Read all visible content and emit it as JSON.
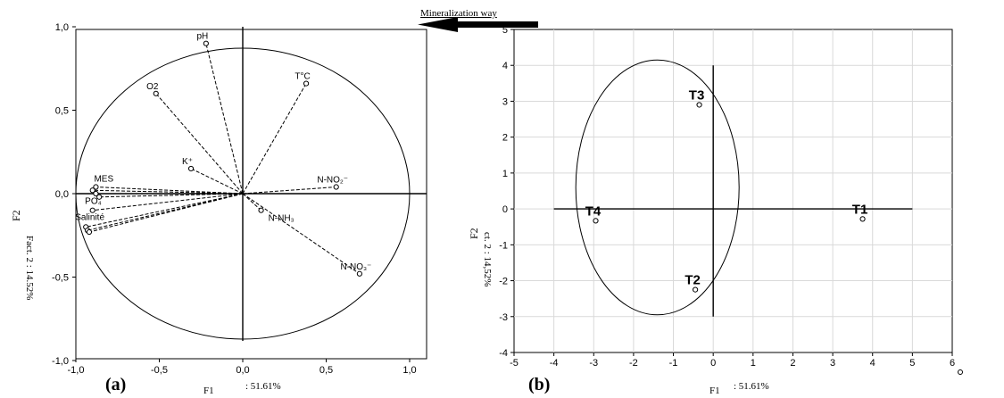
{
  "banner": {
    "text": "Mineralization way"
  },
  "chart_data": [
    {
      "type": "scatter",
      "panel_label": "(a)",
      "xlabel": "F1",
      "xlabel_value": ": 51.61%",
      "ylabel": "F2",
      "ylabel_inner": "Fact. 2 : 14.52%",
      "xlim": [
        -1.1,
        1.1
      ],
      "ylim": [
        -1.1,
        1.1
      ],
      "xticks": [
        "-1,0",
        "-0,5",
        "0,0",
        "0,5",
        "1,0"
      ],
      "yticks": [
        "1,0",
        "0,5",
        "0,0",
        "-0,5",
        "-1,0"
      ],
      "circle": {
        "center": [
          0,
          0
        ],
        "radius": 1.0
      },
      "points": [
        {
          "label": "pH",
          "x": -0.22,
          "y": 0.9
        },
        {
          "label": "O2",
          "x": -0.52,
          "y": 0.6
        },
        {
          "label": "T°C",
          "x": 0.38,
          "y": 0.66
        },
        {
          "label": "K⁺",
          "x": -0.31,
          "y": 0.15
        },
        {
          "label": "N-NO₂⁻",
          "x": 0.56,
          "y": 0.04
        },
        {
          "label": "N-NH₃",
          "x": 0.11,
          "y": -0.1
        },
        {
          "label": "N-NO₃⁻",
          "x": 0.7,
          "y": -0.48
        },
        {
          "label": "MES",
          "x": -0.88,
          "y": 0.04
        },
        {
          "label": "",
          "x": -0.9,
          "y": 0.02
        },
        {
          "label": "",
          "x": -0.88,
          "y": 0.0
        },
        {
          "label": "PO₄",
          "x": -0.86,
          "y": -0.02
        },
        {
          "label": "",
          "x": -0.9,
          "y": -0.1
        },
        {
          "label": "Salinité",
          "x": -0.94,
          "y": -0.2
        },
        {
          "label": "",
          "x": -0.93,
          "y": -0.22
        },
        {
          "label": "",
          "x": -0.92,
          "y": -0.23
        }
      ]
    },
    {
      "type": "scatter",
      "panel_label": "(b)",
      "xlabel": "F1",
      "xlabel_value": ": 51.61%",
      "ylabel": "F2",
      "ylabel_inner": "ct. 2 : 14,52%",
      "xlim": [
        -5,
        6
      ],
      "ylim": [
        -4,
        5
      ],
      "xticks": [
        "-5",
        "-4",
        "-3",
        "-2",
        "-1",
        "0",
        "1",
        "2",
        "3",
        "4",
        "5",
        "6"
      ],
      "yticks": [
        "5",
        "4",
        "3",
        "2",
        "1",
        "0",
        "-1",
        "-2",
        "-3",
        "-4"
      ],
      "grid": true,
      "ellipse": {
        "cx": -1.4,
        "cy": 0.6,
        "rx": 2.05,
        "ry": 3.55
      },
      "points": [
        {
          "label": "T1",
          "x": 3.75,
          "y": -0.28
        },
        {
          "label": "T2",
          "x": -0.45,
          "y": -2.25
        },
        {
          "label": "T3",
          "x": -0.35,
          "y": 2.9
        },
        {
          "label": "T4",
          "x": -2.95,
          "y": -0.33
        }
      ]
    }
  ]
}
